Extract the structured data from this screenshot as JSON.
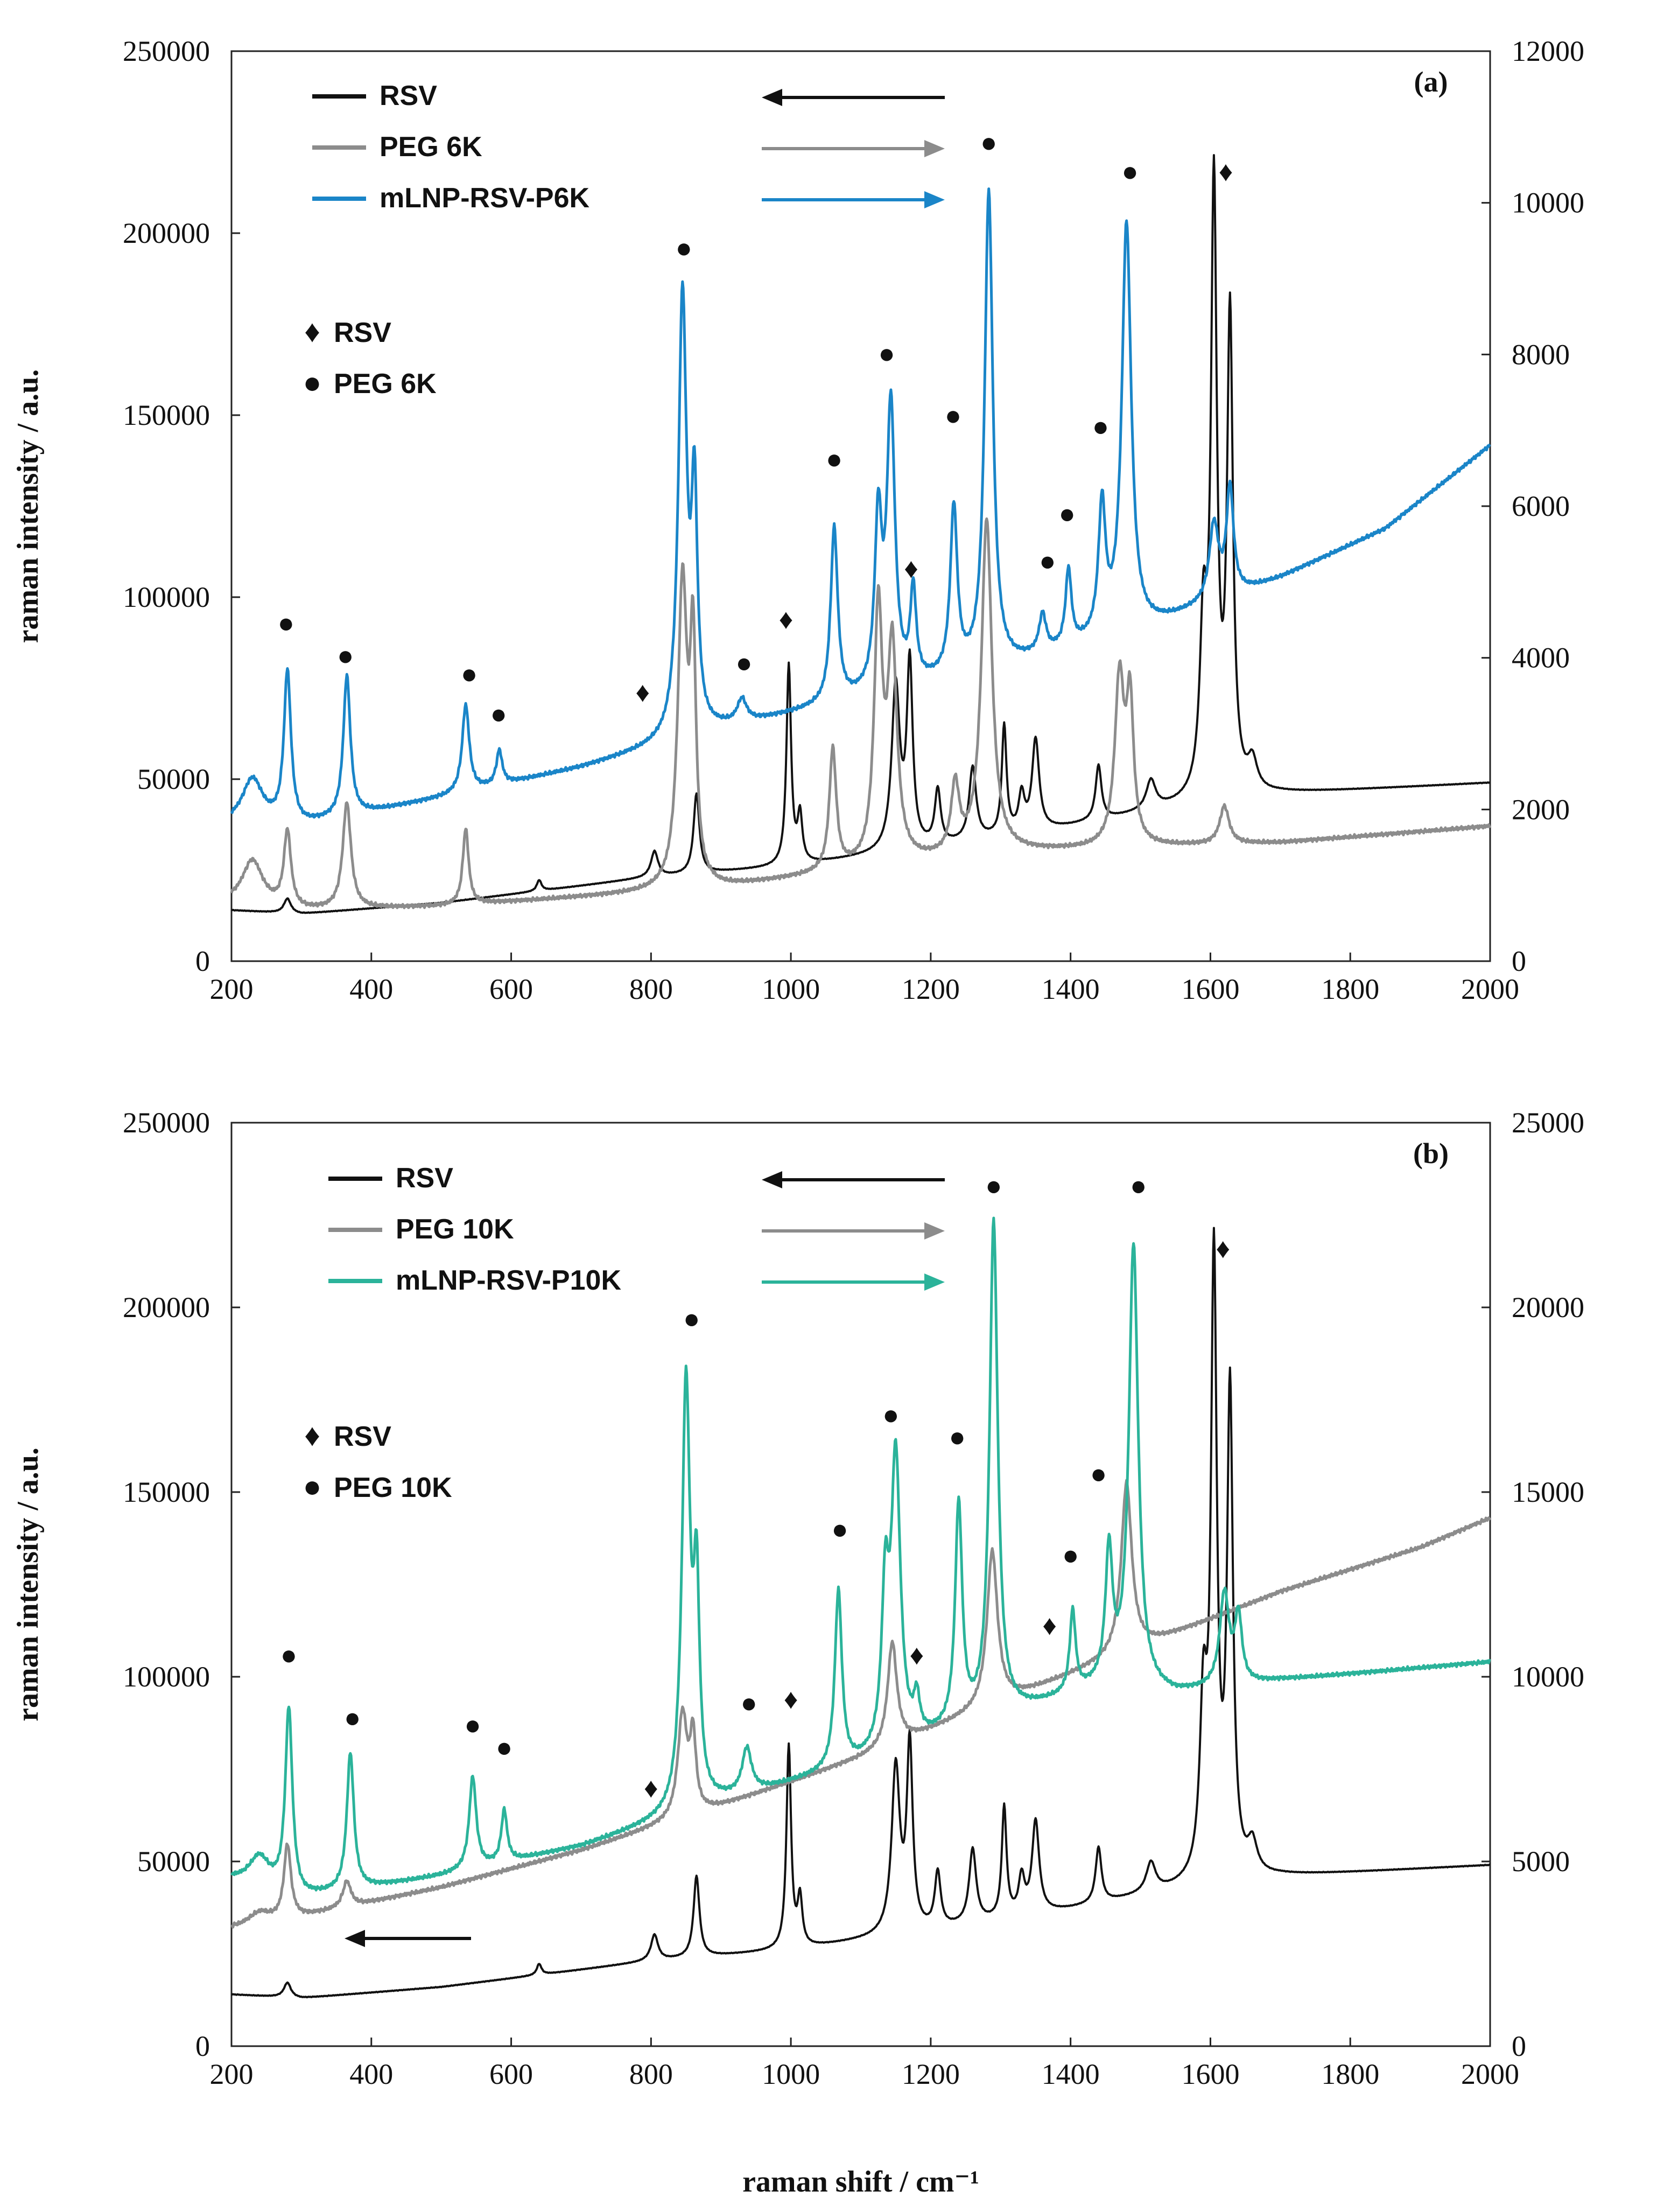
{
  "chart_data": [
    {
      "type": "line",
      "panel_label": "(a)",
      "title": "",
      "xlabel": "",
      "ylabel": "raman intensity / a.u.",
      "xlim": [
        200,
        2000
      ],
      "ylim_left": [
        0,
        250000
      ],
      "ylim_right": [
        0,
        12000
      ],
      "x_ticks": [
        "200",
        "400",
        "600",
        "800",
        "1000",
        "1200",
        "1400",
        "1600",
        "1800",
        "2000"
      ],
      "y_left_ticks": [
        "0",
        "50000",
        "100000",
        "150000",
        "200000",
        "250000"
      ],
      "y_right_ticks": [
        "0",
        "2000",
        "4000",
        "6000",
        "8000",
        "10000",
        "12000"
      ],
      "legend": [
        {
          "name": "RSV",
          "color": "#111111",
          "arrow": "left"
        },
        {
          "name": "PEG 6K",
          "color": "#8c8c8c",
          "arrow": "right"
        },
        {
          "name": "mLNP-RSV-P6K",
          "color": "#1a85c8",
          "arrow": "right"
        }
      ],
      "marker_legend": [
        {
          "symbol": "♦",
          "label": "RSV"
        },
        {
          "symbol": "●",
          "label": "PEG 6K"
        }
      ],
      "series": [
        {
          "name": "RSV",
          "axis": "left",
          "color": "#111111",
          "baseline": [
            [
              200,
              14000
            ],
            [
              300,
              13000
            ],
            [
              500,
              16000
            ],
            [
              800,
              23000
            ],
            [
              1000,
              26000
            ],
            [
              1200,
              31000
            ],
            [
              1400,
              37000
            ],
            [
              1600,
              44000
            ],
            [
              1700,
              46000
            ],
            [
              2000,
              49000
            ]
          ],
          "peaks": [
            [
              280,
              4000,
              6
            ],
            [
              640,
              3000,
              4
            ],
            [
              805,
              7000,
              6
            ],
            [
              865,
              22000,
              5
            ],
            [
              997,
              55000,
              4
            ],
            [
              1013,
              13000,
              4
            ],
            [
              1150,
              45000,
              7
            ],
            [
              1170,
              50000,
              5
            ],
            [
              1210,
              15000,
              5
            ],
            [
              1260,
              20000,
              6
            ],
            [
              1305,
              30000,
              4
            ],
            [
              1330,
              10000,
              5
            ],
            [
              1350,
              25000,
              6
            ],
            [
              1440,
              15000,
              5
            ],
            [
              1515,
              8000,
              8
            ],
            [
              1590,
              45000,
              6
            ],
            [
              1605,
              165000,
              5
            ],
            [
              1628,
              130000,
              5
            ],
            [
              1660,
              8000,
              8
            ]
          ]
        },
        {
          "name": "PEG 6K",
          "axis": "right",
          "color": "#8c8c8c",
          "baseline": [
            [
              200,
              750
            ],
            [
              300,
              660
            ],
            [
              500,
              720
            ],
            [
              700,
              840
            ],
            [
              900,
              960
            ],
            [
              1100,
              1200
            ],
            [
              1300,
              1420
            ],
            [
              1500,
              1500
            ],
            [
              1700,
              1560
            ],
            [
              2000,
              1780
            ]
          ],
          "peaks": [
            [
              230,
              600,
              18
            ],
            [
              280,
              1000,
              6
            ],
            [
              365,
              1400,
              7
            ],
            [
              535,
              1000,
              5
            ],
            [
              845,
              4000,
              8
            ],
            [
              860,
              3000,
              5
            ],
            [
              1060,
              1600,
              6
            ],
            [
              1125,
              3300,
              7
            ],
            [
              1145,
              2800,
              8
            ],
            [
              1235,
              900,
              7
            ],
            [
              1280,
              4400,
              9
            ],
            [
              1470,
              2200,
              8
            ],
            [
              1485,
              1800,
              6
            ],
            [
              1620,
              500,
              8
            ]
          ]
        },
        {
          "name": "mLNP-RSV-P6K",
          "axis": "right",
          "color": "#1a85c8",
          "baseline": [
            [
              200,
              1800
            ],
            [
              300,
              1780
            ],
            [
              500,
              2150
            ],
            [
              700,
              2550
            ],
            [
              900,
              3050
            ],
            [
              1100,
              3450
            ],
            [
              1300,
              3850
            ],
            [
              1500,
              4350
            ],
            [
              1700,
              5050
            ],
            [
              1850,
              5700
            ],
            [
              2000,
              6800
            ]
          ],
          "peaks": [
            [
              230,
              600,
              18
            ],
            [
              280,
              2000,
              6
            ],
            [
              365,
              1850,
              6
            ],
            [
              535,
              1150,
              6
            ],
            [
              583,
              450,
              5
            ],
            [
              845,
              5800,
              7
            ],
            [
              862,
              3000,
              5
            ],
            [
              930,
              300,
              8
            ],
            [
              1062,
              2300,
              6
            ],
            [
              1125,
              2200,
              6
            ],
            [
              1143,
              3700,
              7
            ],
            [
              1175,
              1200,
              5
            ],
            [
              1233,
              2200,
              6
            ],
            [
              1283,
              6300,
              7
            ],
            [
              1360,
              500,
              6
            ],
            [
              1397,
              1000,
              5
            ],
            [
              1445,
              1700,
              6
            ],
            [
              1480,
              5400,
              8
            ],
            [
              1605,
              1000,
              8
            ],
            [
              1628,
              1400,
              6
            ]
          ]
        }
      ],
      "peak_markers": [
        {
          "symbol": "●",
          "x": 278,
          "y": 93000
        },
        {
          "symbol": "●",
          "x": 363,
          "y": 84000
        },
        {
          "symbol": "●",
          "x": 540,
          "y": 79000
        },
        {
          "symbol": "●",
          "x": 582,
          "y": 68000
        },
        {
          "symbol": "♦",
          "x": 788,
          "y": 74000
        },
        {
          "symbol": "●",
          "x": 847,
          "y": 196000
        },
        {
          "symbol": "●",
          "x": 933,
          "y": 82000
        },
        {
          "symbol": "♦",
          "x": 993,
          "y": 94000
        },
        {
          "symbol": "●",
          "x": 1062,
          "y": 138000
        },
        {
          "symbol": "●",
          "x": 1137,
          "y": 167000
        },
        {
          "symbol": "♦",
          "x": 1172,
          "y": 108000
        },
        {
          "symbol": "●",
          "x": 1232,
          "y": 150000
        },
        {
          "symbol": "●",
          "x": 1283,
          "y": 225000
        },
        {
          "symbol": "●",
          "x": 1367,
          "y": 110000
        },
        {
          "symbol": "●",
          "x": 1395,
          "y": 123000
        },
        {
          "symbol": "●",
          "x": 1443,
          "y": 147000
        },
        {
          "symbol": "●",
          "x": 1485,
          "y": 217000
        },
        {
          "symbol": "♦",
          "x": 1622,
          "y": 217000
        }
      ]
    },
    {
      "type": "line",
      "panel_label": "(b)",
      "title": "",
      "xlabel": "raman shift / cm⁻¹",
      "ylabel": "raman intensity / a.u.",
      "xlim": [
        200,
        2000
      ],
      "ylim_left": [
        0,
        250000
      ],
      "ylim_right": [
        0,
        25000
      ],
      "x_ticks": [
        "200",
        "400",
        "600",
        "800",
        "1000",
        "1200",
        "1400",
        "1600",
        "1800",
        "2000"
      ],
      "y_left_ticks": [
        "0",
        "50000",
        "100000",
        "150000",
        "200000",
        "250000"
      ],
      "y_right_ticks": [
        "0",
        "5000",
        "10000",
        "15000",
        "20000",
        "25000"
      ],
      "legend": [
        {
          "name": "RSV",
          "color": "#111111",
          "arrow": "left"
        },
        {
          "name": "PEG 10K",
          "color": "#8c8c8c",
          "arrow": "right"
        },
        {
          "name": "mLNP-RSV-P10K",
          "color": "#2bb39a",
          "arrow": "right"
        }
      ],
      "marker_legend": [
        {
          "symbol": "♦",
          "label": "RSV"
        },
        {
          "symbol": "●",
          "label": "PEG 10K"
        }
      ],
      "series": [
        {
          "name": "RSV",
          "axis": "left",
          "color": "#111111",
          "baseline": [
            [
              200,
              14000
            ],
            [
              300,
              13000
            ],
            [
              500,
              16000
            ],
            [
              800,
              23000
            ],
            [
              1000,
              26000
            ],
            [
              1200,
              31000
            ],
            [
              1400,
              37000
            ],
            [
              1600,
              44000
            ],
            [
              1700,
              46000
            ],
            [
              2000,
              49000
            ]
          ],
          "peaks": [
            [
              280,
              4000,
              6
            ],
            [
              640,
              3000,
              4
            ],
            [
              805,
              7000,
              6
            ],
            [
              865,
              22000,
              5
            ],
            [
              997,
              55000,
              4
            ],
            [
              1013,
              13000,
              4
            ],
            [
              1150,
              45000,
              7
            ],
            [
              1170,
              50000,
              5
            ],
            [
              1210,
              15000,
              5
            ],
            [
              1260,
              20000,
              6
            ],
            [
              1305,
              30000,
              4
            ],
            [
              1330,
              10000,
              5
            ],
            [
              1350,
              25000,
              6
            ],
            [
              1440,
              15000,
              5
            ],
            [
              1515,
              8000,
              8
            ],
            [
              1590,
              45000,
              6
            ],
            [
              1605,
              165000,
              5
            ],
            [
              1628,
              130000,
              5
            ],
            [
              1660,
              8000,
              8
            ]
          ]
        },
        {
          "name": "PEG 10K",
          "axis": "right",
          "color": "#8c8c8c",
          "baseline": [
            [
              200,
              3200
            ],
            [
              300,
              3500
            ],
            [
              500,
              4300
            ],
            [
              700,
              5300
            ],
            [
              900,
              6500
            ],
            [
              1100,
              7800
            ],
            [
              1300,
              9300
            ],
            [
              1500,
              10800
            ],
            [
              1700,
              12300
            ],
            [
              1900,
              13500
            ],
            [
              2000,
              14300
            ]
          ],
          "peaks": [
            [
              240,
              300,
              18
            ],
            [
              280,
              2000,
              6
            ],
            [
              365,
              700,
              7
            ],
            [
              845,
              2800,
              8
            ],
            [
              860,
              2000,
              5
            ],
            [
              1145,
              2800,
              8
            ],
            [
              1288,
              4200,
              9
            ],
            [
              1480,
              4600,
              9
            ]
          ]
        },
        {
          "name": "mLNP-RSV-P10K",
          "axis": "right",
          "color": "#2bb39a",
          "baseline": [
            [
              200,
              4500
            ],
            [
              300,
              4000
            ],
            [
              500,
              4600
            ],
            [
              700,
              5400
            ],
            [
              900,
              6600
            ],
            [
              1100,
              7600
            ],
            [
              1300,
              8900
            ],
            [
              1450,
              9700
            ],
            [
              1550,
              9500
            ],
            [
              1700,
              9900
            ],
            [
              2000,
              10400
            ]
          ],
          "peaks": [
            [
              240,
              800,
              18
            ],
            [
              282,
              5000,
              6
            ],
            [
              370,
              3700,
              6
            ],
            [
              545,
              2500,
              6
            ],
            [
              590,
              1400,
              5
            ],
            [
              850,
              11500,
              7
            ],
            [
              865,
              5500,
              5
            ],
            [
              937,
              1200,
              8
            ],
            [
              1068,
              4800,
              6
            ],
            [
              1135,
              4000,
              6
            ],
            [
              1150,
              7800,
              8
            ],
            [
              1180,
              1000,
              5
            ],
            [
              1240,
              6000,
              6
            ],
            [
              1290,
              13400,
              7
            ],
            [
              1403,
              2200,
              5
            ],
            [
              1455,
              3500,
              6
            ],
            [
              1490,
              12000,
              8
            ],
            [
              1620,
              2500,
              8
            ],
            [
              1640,
              1800,
              6
            ]
          ]
        }
      ],
      "peak_markers": [
        {
          "symbol": "●",
          "x": 282,
          "y": 106000
        },
        {
          "symbol": "●",
          "x": 373,
          "y": 89000
        },
        {
          "symbol": "●",
          "x": 545,
          "y": 87000
        },
        {
          "symbol": "●",
          "x": 590,
          "y": 81000
        },
        {
          "symbol": "♦",
          "x": 800,
          "y": 70000
        },
        {
          "symbol": "●",
          "x": 858,
          "y": 197000
        },
        {
          "symbol": "●",
          "x": 940,
          "y": 93000
        },
        {
          "symbol": "♦",
          "x": 1000,
          "y": 94000
        },
        {
          "symbol": "●",
          "x": 1070,
          "y": 140000
        },
        {
          "symbol": "●",
          "x": 1143,
          "y": 171000
        },
        {
          "symbol": "♦",
          "x": 1180,
          "y": 106000
        },
        {
          "symbol": "●",
          "x": 1238,
          "y": 165000
        },
        {
          "symbol": "●",
          "x": 1290,
          "y": 233000
        },
        {
          "symbol": "♦",
          "x": 1370,
          "y": 114000
        },
        {
          "symbol": "●",
          "x": 1400,
          "y": 133000
        },
        {
          "symbol": "●",
          "x": 1440,
          "y": 155000
        },
        {
          "symbol": "●",
          "x": 1497,
          "y": 233000
        },
        {
          "symbol": "♦",
          "x": 1618,
          "y": 216000
        }
      ]
    }
  ]
}
